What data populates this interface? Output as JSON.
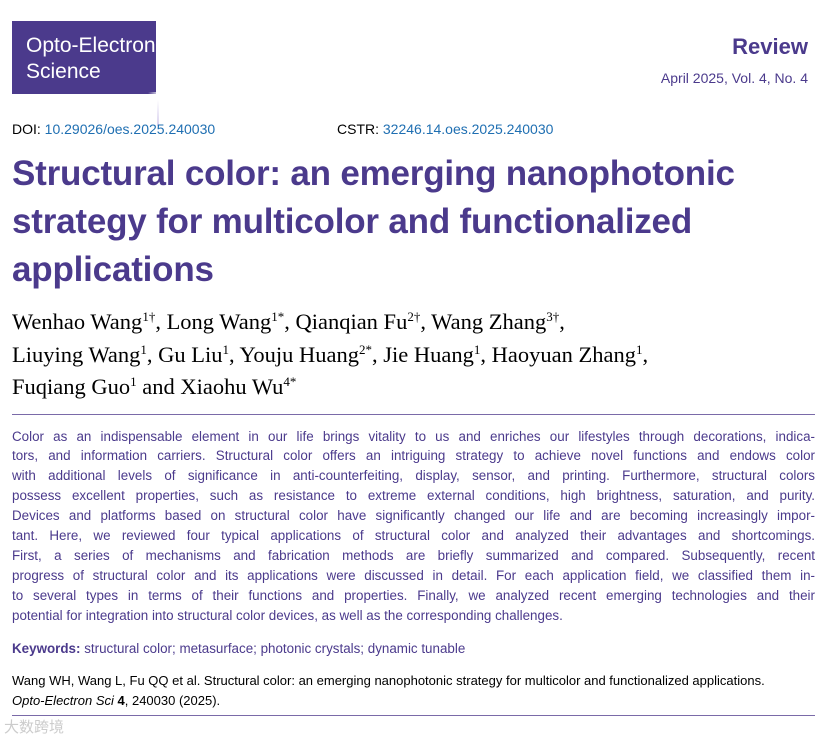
{
  "journal": {
    "name_line1": "Opto-Electronic",
    "name_line2": "Science",
    "type": "Review",
    "issue": "April 2025, Vol. 4, No. 4"
  },
  "ids": {
    "doi_label": "DOI:",
    "doi": "10.29026/oes.2025.240030",
    "cstr_label": "CSTR:",
    "cstr": "32246.14.oes.2025.240030"
  },
  "title": "Structural color: an emerging nanophotonic strategy for multicolor and functionalized applications",
  "authors": [
    {
      "name": "Wenhao Wang",
      "sup": "1†"
    },
    {
      "name": "Long Wang",
      "sup": "1*"
    },
    {
      "name": "Qianqian Fu",
      "sup": "2†"
    },
    {
      "name": "Wang Zhang",
      "sup": "3†"
    },
    {
      "name": "Liuying Wang",
      "sup": "1"
    },
    {
      "name": "Gu Liu",
      "sup": "1"
    },
    {
      "name": "Youju Huang",
      "sup": "2*"
    },
    {
      "name": "Jie Huang",
      "sup": "1"
    },
    {
      "name": "Haoyuan Zhang",
      "sup": "1"
    },
    {
      "name": "Fuqiang Guo",
      "sup": "1"
    },
    {
      "name": "Xiaohu Wu",
      "sup": "4*"
    }
  ],
  "authors_and": "and",
  "abstract_lines": [
    "Color as an indispensable element in our life brings vitality to us and enriches our lifestyles through decorations, indica-",
    "tors, and information carriers. Structural color offers an intriguing strategy to achieve novel functions and endows color",
    "with additional levels of significance in anti-counterfeiting, display, sensor, and printing. Furthermore, structural colors",
    "possess excellent properties, such as resistance to extreme external conditions, high brightness, saturation, and purity.",
    "Devices and platforms based on structural color have significantly changed our life and are becoming increasingly impor-",
    "tant. Here, we reviewed four typical applications of structural color and analyzed their advantages and shortcomings.",
    "First, a series of mechanisms and fabrication methods are briefly summarized and compared. Subsequently, recent",
    "progress of structural color and its applications were discussed in detail. For each application field, we classified them in-",
    "to several types in terms of their functions and properties. Finally, we analyzed recent emerging technologies and their",
    "potential for integration into structural color devices, as well as the corresponding challenges."
  ],
  "keywords": {
    "label": "Keywords:",
    "text": "structural color; metasurface; photonic crystals; dynamic tunable"
  },
  "citation": {
    "line1": "Wang WH, Wang L, Fu QQ et al. Structural color: an emerging nanophotonic strategy for multicolor and functionalized applications.",
    "journal": "Opto-Electron Sci",
    "volume": "4",
    "rest": ", 240030 (2025)."
  },
  "watermark": "大数跨境",
  "colors": {
    "brand": "#4b3a8c",
    "link": "#1f6fb2"
  }
}
